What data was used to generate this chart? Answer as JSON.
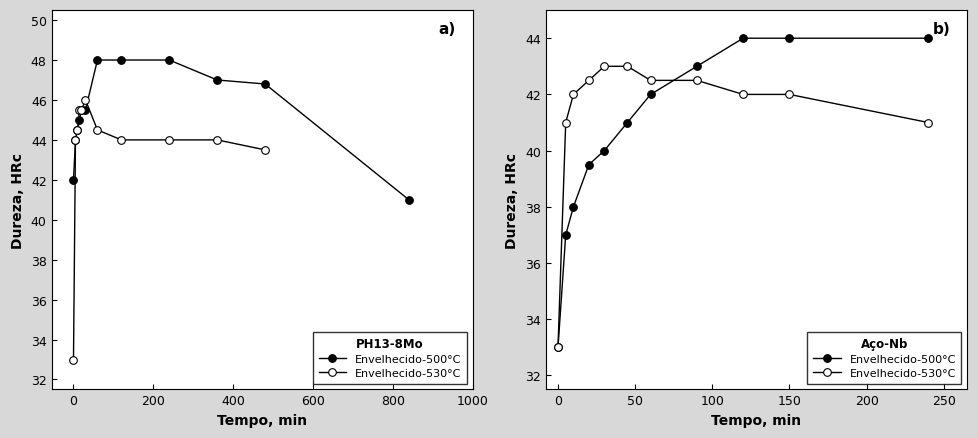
{
  "panel_a": {
    "title": "a)",
    "xlabel": "Tempo, min",
    "ylabel": "Dureza, HRc",
    "xlim": [
      -55,
      1000
    ],
    "ylim": [
      31.5,
      50.5
    ],
    "yticks": [
      32,
      34,
      36,
      38,
      40,
      42,
      44,
      46,
      48,
      50
    ],
    "xticks": [
      0,
      200,
      400,
      600,
      800,
      1000
    ],
    "legend_title": "PH13-8Mo",
    "legend_loc": "lower right",
    "series": [
      {
        "label": "Envelhecido-500°C",
        "x": [
          0,
          5,
          10,
          15,
          20,
          30,
          60,
          120,
          240,
          360,
          480,
          840
        ],
        "y": [
          42.0,
          44.0,
          44.5,
          45.0,
          45.5,
          45.5,
          48.0,
          48.0,
          48.0,
          47.0,
          46.8,
          41.0
        ],
        "marker": "o",
        "markerfacecolor": "black",
        "color": "black"
      },
      {
        "label": "Envelhecido-530°C",
        "x": [
          0,
          5,
          10,
          15,
          20,
          30,
          60,
          120,
          240,
          360,
          480
        ],
        "y": [
          33.0,
          44.0,
          44.5,
          45.5,
          45.5,
          46.0,
          44.5,
          44.0,
          44.0,
          44.0,
          43.5
        ],
        "marker": "o",
        "markerfacecolor": "white",
        "color": "black"
      }
    ]
  },
  "panel_b": {
    "title": "b)",
    "xlabel": "Tempo, min",
    "ylabel": "Dureza, HRc",
    "xlim": [
      -8,
      265
    ],
    "ylim": [
      31.5,
      45.0
    ],
    "yticks": [
      32,
      34,
      36,
      38,
      40,
      42,
      44
    ],
    "xticks": [
      0,
      50,
      100,
      150,
      200,
      250
    ],
    "legend_title": "Aço-Nb",
    "legend_loc": "lower right",
    "series": [
      {
        "label": "Envelhecido-500°C",
        "x": [
          0,
          5,
          10,
          20,
          30,
          45,
          60,
          90,
          120,
          150,
          240
        ],
        "y": [
          33.0,
          37.0,
          38.0,
          39.5,
          40.0,
          41.0,
          42.0,
          43.0,
          44.0,
          44.0,
          44.0
        ],
        "marker": "o",
        "markerfacecolor": "black",
        "color": "black"
      },
      {
        "label": "Envelhecido-530°C",
        "x": [
          0,
          5,
          10,
          20,
          30,
          45,
          60,
          90,
          120,
          150,
          240
        ],
        "y": [
          33.0,
          41.0,
          42.0,
          42.5,
          43.0,
          43.0,
          42.5,
          42.5,
          42.0,
          42.0,
          41.0
        ],
        "marker": "o",
        "markerfacecolor": "white",
        "color": "black"
      }
    ]
  },
  "figure_facecolor": "#d8d8d8",
  "plot_bg_color": "#ffffff",
  "figsize": [
    9.78,
    4.39
  ],
  "dpi": 100
}
